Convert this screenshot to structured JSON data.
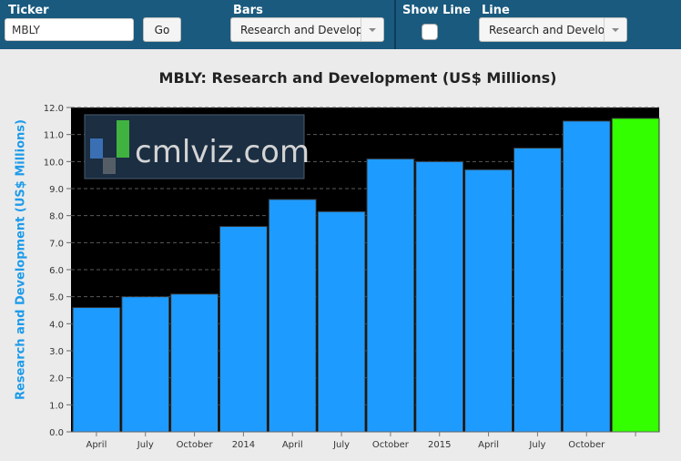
{
  "controls": {
    "ticker_label": "Ticker",
    "ticker_value": "MBLY",
    "go_label": "Go",
    "bars_label": "Bars",
    "bars_value": "Research and Development",
    "show_line_label": "Show Line",
    "show_line_checked": false,
    "line_label": "Line",
    "line_value": "Research and Development"
  },
  "watermark": "cmlviz.com",
  "colors": {
    "header_bg": "#1a5a7e",
    "bar": "#1e9bff",
    "bar_highlight": "#33ff00",
    "plot_bg": "#000000",
    "axis_label": "#1e9bea"
  },
  "chart_data": {
    "type": "bar",
    "title": "MBLY: Research and Development (US$ Millions)",
    "ylabel": "Research and Development (US$ Millions)",
    "xlabel": "",
    "ylim": [
      0,
      12
    ],
    "yticks": [
      "0.0",
      "1.0",
      "2.0",
      "3.0",
      "4.0",
      "5.0",
      "6.0",
      "7.0",
      "8.0",
      "9.0",
      "10.0",
      "11.0",
      "12.0"
    ],
    "grid": true,
    "categories": [
      "April",
      "July",
      "October",
      "2014",
      "April",
      "July",
      "October",
      "2015",
      "April",
      "July",
      "October",
      ""
    ],
    "values": [
      4.6,
      5.0,
      5.1,
      7.6,
      8.6,
      8.15,
      10.1,
      10.0,
      9.7,
      10.5,
      11.5,
      11.6
    ],
    "highlight_last": true
  }
}
